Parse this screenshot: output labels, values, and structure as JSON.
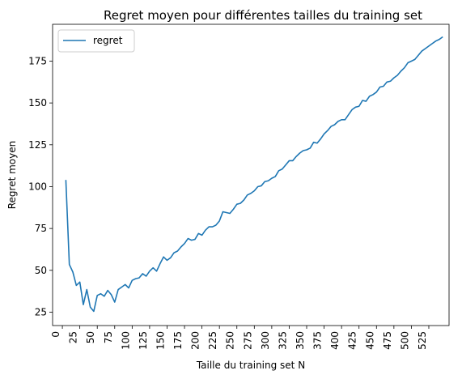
{
  "chart_data": {
    "type": "line",
    "title": "Regret moyen pour différentes tailles du training set",
    "xlabel": "Taille du training set N",
    "ylabel": "Regret moyen",
    "xlim": [
      -14,
      554
    ],
    "ylim": [
      17,
      197
    ],
    "xticks": [
      0,
      25,
      50,
      75,
      100,
      125,
      150,
      175,
      200,
      225,
      250,
      275,
      300,
      325,
      350,
      375,
      400,
      425,
      450,
      475,
      500,
      525
    ],
    "yticks": [
      25,
      50,
      75,
      100,
      125,
      150,
      175
    ],
    "xtick_rotation": -90,
    "grid": false,
    "legend": {
      "position": "top-left"
    },
    "series": [
      {
        "name": "regret",
        "color": "#1f77b4",
        "x": [
          5,
          10,
          15,
          20,
          25,
          30,
          35,
          40,
          45,
          50,
          55,
          60,
          65,
          70,
          75,
          80,
          85,
          90,
          95,
          100,
          105,
          110,
          115,
          120,
          125,
          130,
          135,
          140,
          145,
          150,
          155,
          160,
          165,
          170,
          175,
          180,
          185,
          190,
          195,
          200,
          205,
          210,
          215,
          220,
          225,
          230,
          235,
          240,
          245,
          250,
          255,
          260,
          265,
          270,
          275,
          280,
          285,
          290,
          295,
          300,
          305,
          310,
          315,
          320,
          325,
          330,
          335,
          340,
          345,
          350,
          355,
          360,
          365,
          370,
          375,
          380,
          385,
          390,
          395,
          400,
          405,
          410,
          415,
          420,
          425,
          430,
          435,
          440,
          445,
          450,
          455,
          460,
          465,
          470,
          475,
          480,
          485,
          490,
          495,
          500,
          505,
          510,
          515,
          520,
          525,
          530,
          535,
          540,
          545
        ],
        "values": [
          104,
          53.5,
          49,
          41,
          43,
          29.5,
          38.5,
          28,
          25.5,
          35,
          36,
          34.5,
          38,
          35.5,
          31,
          38.5,
          40,
          41.5,
          39.5,
          44,
          45,
          45.5,
          48,
          46.5,
          49.5,
          51.5,
          49.5,
          54,
          58,
          56,
          57.5,
          60.5,
          61.5,
          64,
          66,
          69,
          68,
          68.5,
          72,
          71,
          74,
          76,
          76,
          77,
          79.5,
          85,
          84.5,
          84,
          86.5,
          89.5,
          90,
          92,
          95,
          96,
          97.5,
          100,
          100.5,
          103,
          103.5,
          105,
          106,
          109.5,
          110.5,
          113,
          115.5,
          115.5,
          118,
          120,
          121.5,
          122,
          123,
          126.5,
          126,
          128.5,
          131.5,
          133.5,
          136,
          137,
          139,
          140,
          140,
          143,
          146,
          147.5,
          148,
          151.5,
          151,
          154,
          155,
          156.5,
          159.5,
          160,
          162.5,
          163,
          165,
          166.5,
          169,
          171,
          174,
          175,
          176,
          178.5,
          181,
          182.5,
          184,
          185.5,
          187,
          188,
          189.5
        ]
      }
    ]
  }
}
